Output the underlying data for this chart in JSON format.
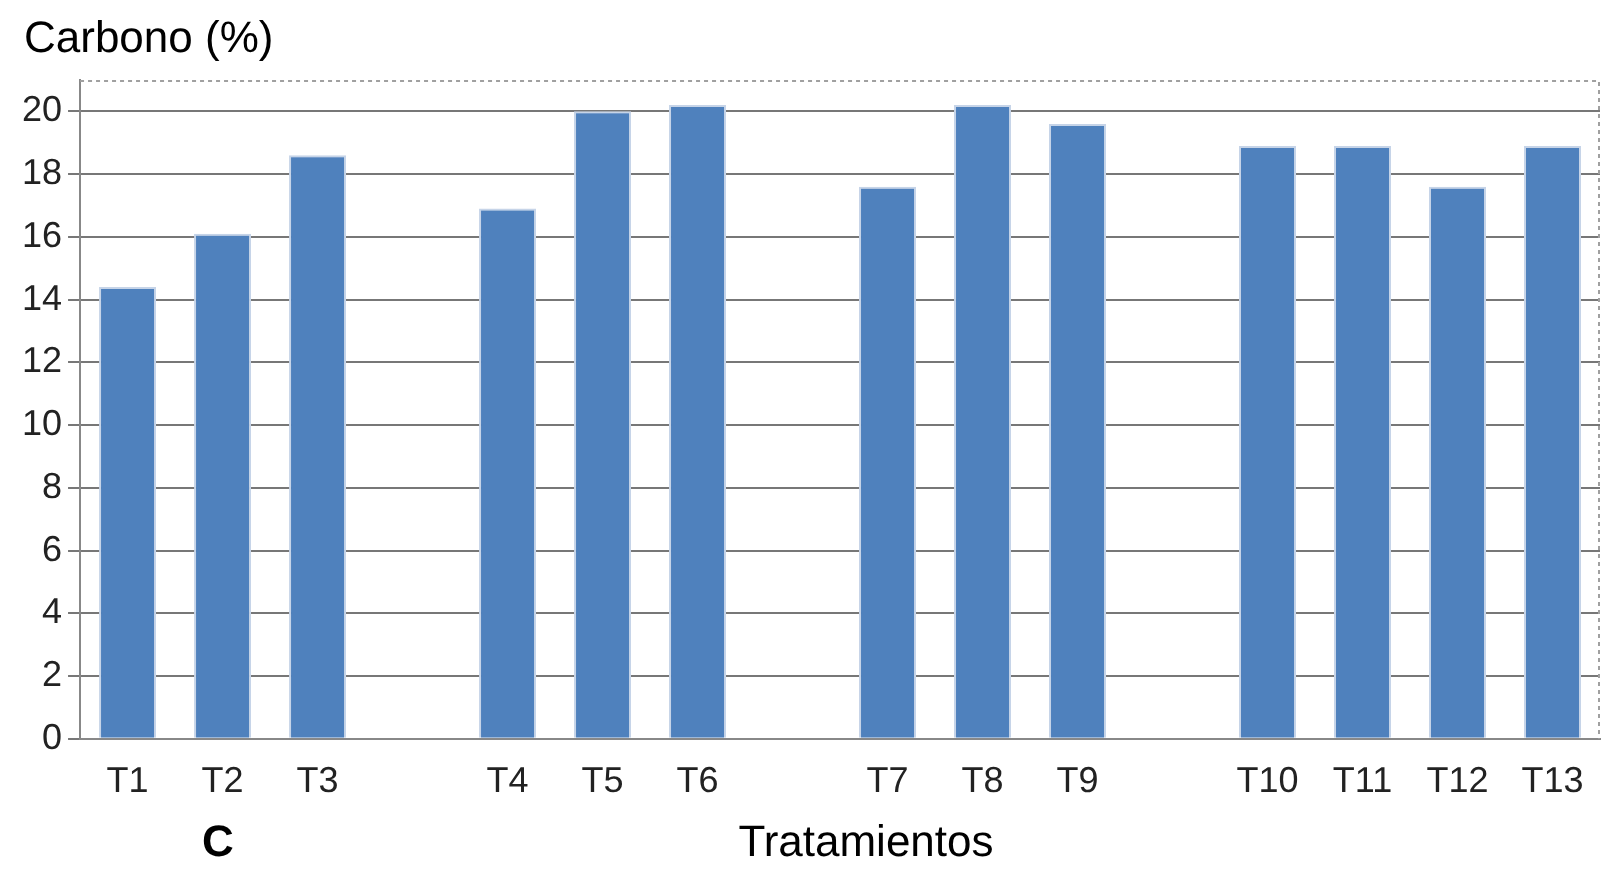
{
  "chart_data": {
    "type": "bar",
    "ylabel": "Carbono (%)",
    "xlabel": "Tratamientos",
    "annotations": [
      "C"
    ],
    "categories": [
      "T1",
      "T2",
      "T3",
      null,
      "T4",
      "T5",
      "T6",
      null,
      "T7",
      "T8",
      "T9",
      null,
      "T10",
      "T11",
      "T12",
      "T13"
    ],
    "values": [
      14.4,
      16.1,
      18.6,
      null,
      16.9,
      20.0,
      20.2,
      null,
      17.6,
      20.2,
      19.6,
      null,
      18.9,
      18.9,
      17.6,
      18.9
    ],
    "color": "#4f81bd",
    "ylim": [
      0,
      21
    ],
    "yticks": [
      0,
      2,
      4,
      6,
      8,
      10,
      12,
      14,
      16,
      18,
      20
    ],
    "grid": "y",
    "legend": false
  }
}
